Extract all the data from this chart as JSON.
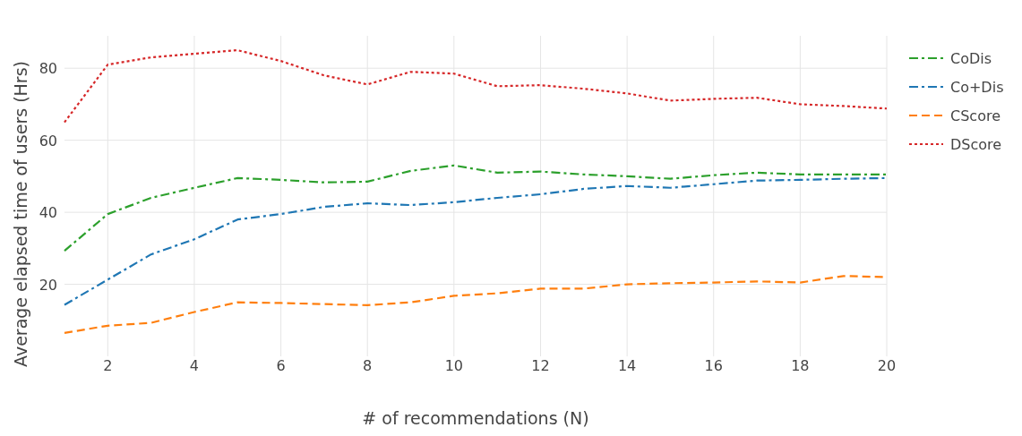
{
  "chart_data": {
    "type": "line",
    "xlabel": "# of recommendations (N)",
    "ylabel": "Average elapsed time of users (Hrs)",
    "x": [
      1,
      2,
      3,
      4,
      5,
      6,
      7,
      8,
      9,
      10,
      11,
      12,
      13,
      14,
      15,
      16,
      17,
      18,
      19,
      20
    ],
    "xlim": [
      1,
      20
    ],
    "xticks": [
      2,
      4,
      6,
      8,
      10,
      12,
      14,
      16,
      18,
      20
    ],
    "ylim": [
      0,
      89
    ],
    "yticks": [
      20,
      40,
      60,
      80
    ],
    "grid": true,
    "legend": "top right",
    "series": [
      {
        "name": "CoDis",
        "color": "#2ca02c",
        "line_style": "dashdot",
        "values": [
          29.3,
          39.5,
          44,
          46.8,
          49.5,
          49,
          48.3,
          48.5,
          51.5,
          53,
          51,
          51.3,
          50.5,
          50,
          49.3,
          50.3,
          51,
          50.5,
          50.5,
          50.5
        ]
      },
      {
        "name": "Co+Dis",
        "color": "#1f77b4",
        "line_style": "dashdot",
        "values": [
          14.3,
          21.3,
          28.3,
          32.5,
          38,
          39.5,
          41.5,
          42.5,
          42,
          42.8,
          44,
          45,
          46.5,
          47.3,
          46.8,
          47.8,
          48.8,
          49,
          49.3,
          49.5
        ]
      },
      {
        "name": "CScore",
        "color": "#ff7f0e",
        "line_style": "dashed",
        "values": [
          6.5,
          8.5,
          9.3,
          12.3,
          15,
          14.8,
          14.5,
          14.2,
          15,
          16.8,
          17.5,
          18.8,
          18.8,
          20,
          20.3,
          20.5,
          20.8,
          20.5,
          22.3,
          22
        ]
      },
      {
        "name": "DScore",
        "color": "#d62728",
        "line_style": "dotted",
        "values": [
          65,
          81,
          83,
          84,
          85,
          82,
          78,
          75.5,
          79,
          78.5,
          75,
          75.3,
          74.3,
          73,
          71,
          71.5,
          71.8,
          70,
          69.5,
          68.8
        ]
      }
    ]
  }
}
